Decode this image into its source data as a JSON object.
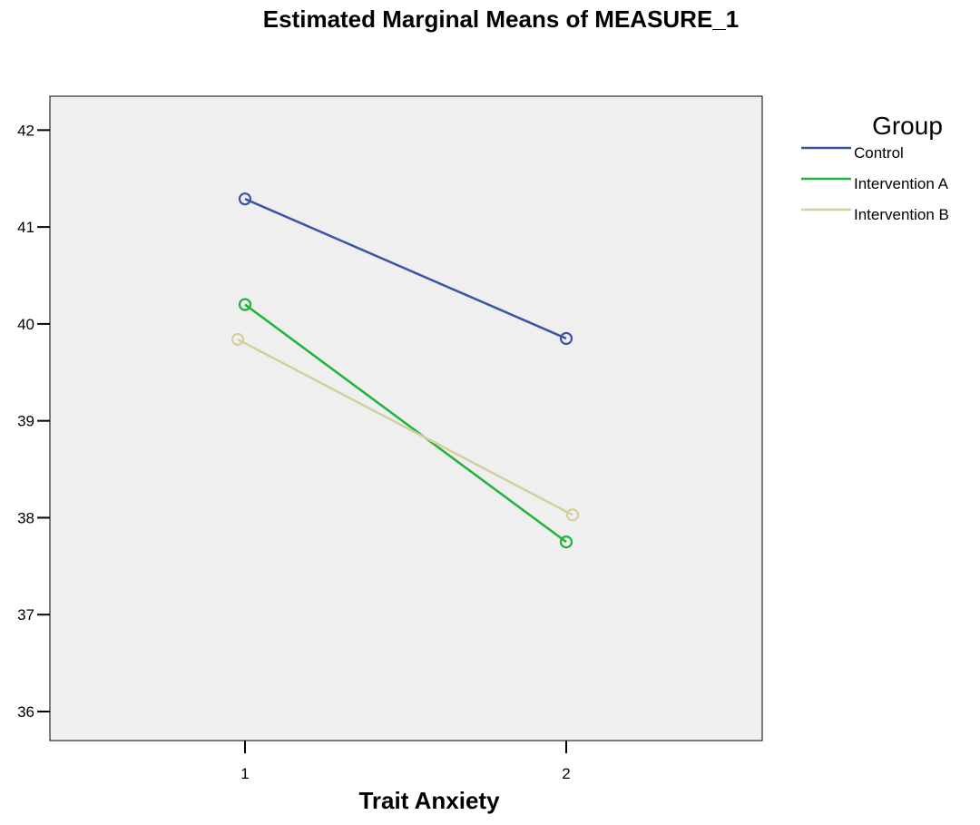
{
  "chart_data": {
    "type": "line",
    "title": "Estimated Marginal Means of MEASURE_1",
    "xlabel": "Trait Anxiety",
    "ylabel": "",
    "categories": [
      "1",
      "2"
    ],
    "x": [
      1,
      2
    ],
    "ylim": [
      35.7,
      42.35
    ],
    "yticks": [
      "36",
      "37",
      "38",
      "39",
      "40",
      "41",
      "42"
    ],
    "grid": false,
    "legend_title": "Group",
    "legend_position": "right",
    "series": [
      {
        "name": "Control",
        "values": [
          41.29,
          39.85
        ],
        "color": "#3a55a4"
      },
      {
        "name": "Intervention A",
        "values": [
          40.2,
          37.75
        ],
        "color": "#1fb33a"
      },
      {
        "name": "Intervention B",
        "values": [
          39.84,
          38.03
        ],
        "color": "#d4cf9e"
      }
    ]
  },
  "colors": {
    "plot_background": "#efefef",
    "frame": "#000000"
  }
}
